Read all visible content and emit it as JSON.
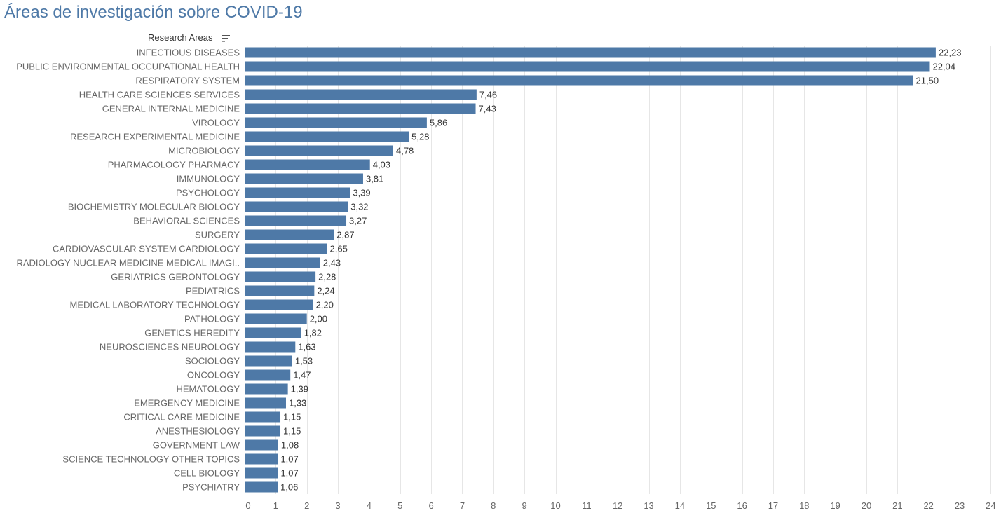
{
  "title": "Áreas de investigación sobre COVID-19",
  "column_header": "Research Areas",
  "icons": {
    "sort": "sort-descending-icon"
  },
  "colors": {
    "bar": "#4e79a7",
    "title": "#4e79a7",
    "grid": "#e6e6e6"
  },
  "chart_data": {
    "type": "bar",
    "orientation": "horizontal",
    "categories": [
      "INFECTIOUS DISEASES",
      "PUBLIC ENVIRONMENTAL OCCUPATIONAL HEALTH",
      "RESPIRATORY SYSTEM",
      "HEALTH CARE SCIENCES SERVICES",
      "GENERAL INTERNAL MEDICINE",
      "VIROLOGY",
      "RESEARCH EXPERIMENTAL MEDICINE",
      "MICROBIOLOGY",
      "PHARMACOLOGY PHARMACY",
      "IMMUNOLOGY",
      "PSYCHOLOGY",
      "BIOCHEMISTRY MOLECULAR BIOLOGY",
      "BEHAVIORAL SCIENCES",
      "SURGERY",
      "CARDIOVASCULAR SYSTEM CARDIOLOGY",
      "RADIOLOGY NUCLEAR MEDICINE MEDICAL IMAGI..",
      "GERIATRICS GERONTOLOGY",
      "PEDIATRICS",
      "MEDICAL LABORATORY TECHNOLOGY",
      "PATHOLOGY",
      "GENETICS HEREDITY",
      "NEUROSCIENCES NEUROLOGY",
      "SOCIOLOGY",
      "ONCOLOGY",
      "HEMATOLOGY",
      "EMERGENCY MEDICINE",
      "CRITICAL CARE MEDICINE",
      "ANESTHESIOLOGY",
      "GOVERNMENT LAW",
      "SCIENCE TECHNOLOGY OTHER TOPICS",
      "CELL BIOLOGY",
      "PSYCHIATRY"
    ],
    "values": [
      22.23,
      22.04,
      21.5,
      7.46,
      7.43,
      5.86,
      5.28,
      4.78,
      4.03,
      3.81,
      3.39,
      3.32,
      3.27,
      2.87,
      2.65,
      2.43,
      2.28,
      2.24,
      2.2,
      2.0,
      1.82,
      1.63,
      1.53,
      1.47,
      1.39,
      1.33,
      1.15,
      1.15,
      1.08,
      1.07,
      1.07,
      1.06
    ],
    "value_labels": [
      "22,23",
      "22,04",
      "21,50",
      "7,46",
      "7,43",
      "5,86",
      "5,28",
      "4,78",
      "4,03",
      "3,81",
      "3,39",
      "3,32",
      "3,27",
      "2,87",
      "2,65",
      "2,43",
      "2,28",
      "2,24",
      "2,20",
      "2,00",
      "1,82",
      "1,63",
      "1,53",
      "1,47",
      "1,39",
      "1,33",
      "1,15",
      "1,15",
      "1,08",
      "1,07",
      "1,07",
      "1,06"
    ],
    "xlim": [
      0,
      24
    ],
    "xticks": [
      0,
      1,
      2,
      3,
      4,
      5,
      6,
      7,
      8,
      9,
      10,
      11,
      12,
      13,
      14,
      15,
      16,
      17,
      18,
      19,
      20,
      21,
      22,
      23,
      24
    ],
    "grid": true,
    "xlabel": "",
    "ylabel": ""
  }
}
